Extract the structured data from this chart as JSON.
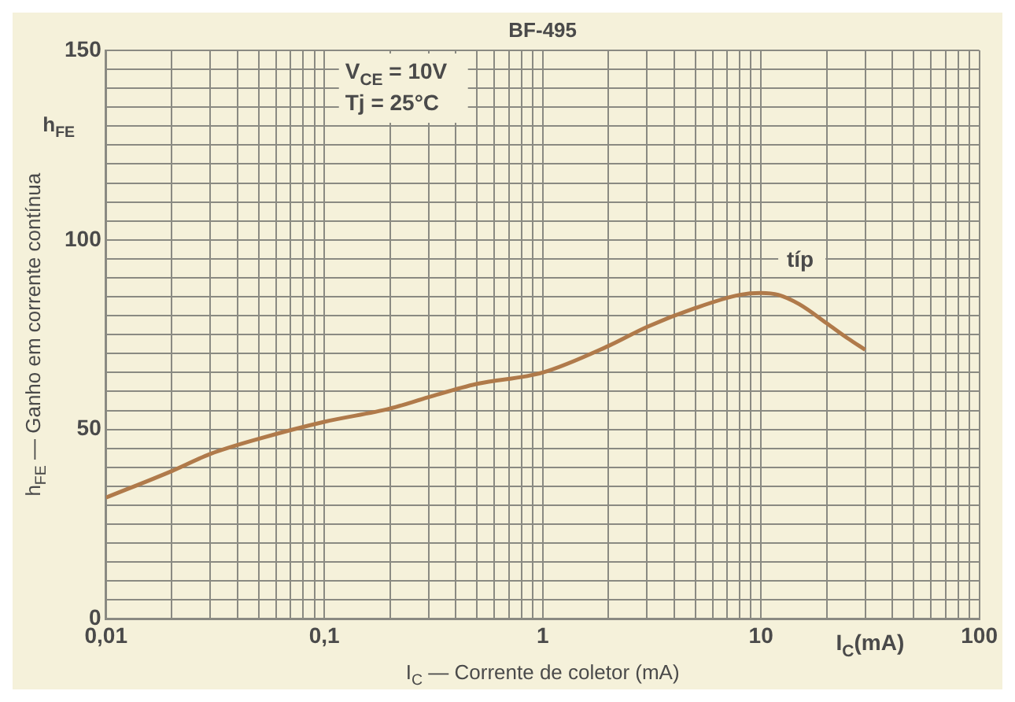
{
  "chart_data": {
    "type": "line",
    "title": "BF-495",
    "xlabel": "I$_{C}$ — Corrente de coletor (mA)",
    "ylabel": "h$_{FE}$ — Ganho em corrente contínua",
    "annotations": [
      "V$_{CE}$ = 10V",
      "Tj = 25°C",
      "h$_{FE}$",
      "I$_{C}$(mA)",
      "típ"
    ],
    "log": "x",
    "grid": true,
    "marker": "none",
    "line_style": "solid",
    "xlim": [
      0.01,
      100
    ],
    "ylim": [
      0,
      150
    ],
    "xticks": [
      {
        "value": 0.01,
        "label": "0,01"
      },
      {
        "value": 0.02,
        "label": null
      },
      {
        "value": 0.03,
        "label": null
      },
      {
        "value": 0.04,
        "label": null
      },
      {
        "value": 0.05,
        "label": null
      },
      {
        "value": 0.06,
        "label": null
      },
      {
        "value": 0.07,
        "label": null
      },
      {
        "value": 0.08,
        "label": null
      },
      {
        "value": 0.09,
        "label": null
      },
      {
        "value": 0.1,
        "label": "0,1"
      },
      {
        "value": 0.2,
        "label": null
      },
      {
        "value": 0.3,
        "label": null
      },
      {
        "value": 0.4,
        "label": null
      },
      {
        "value": 0.5,
        "label": null
      },
      {
        "value": 0.6,
        "label": null
      },
      {
        "value": 0.7,
        "label": null
      },
      {
        "value": 0.8,
        "label": null
      },
      {
        "value": 0.9,
        "label": null
      },
      1,
      {
        "value": 2,
        "label": null
      },
      {
        "value": 3,
        "label": null
      },
      {
        "value": 4,
        "label": null
      },
      {
        "value": 5,
        "label": null
      },
      {
        "value": 6,
        "label": null
      },
      {
        "value": 7,
        "label": null
      },
      {
        "value": 8,
        "label": null
      },
      {
        "value": 9,
        "label": null
      },
      10,
      {
        "value": 20,
        "label": null
      },
      {
        "value": 30,
        "label": null
      },
      {
        "value": 40,
        "label": null
      },
      {
        "value": 50,
        "label": null
      },
      {
        "value": 60,
        "label": null
      },
      {
        "value": 70,
        "label": null
      },
      {
        "value": 80,
        "label": null
      },
      {
        "value": 90,
        "label": null
      },
      100
    ],
    "yticks": [
      0,
      {
        "value": 5,
        "label": null
      },
      {
        "value": 10,
        "label": null
      },
      {
        "value": 15,
        "label": null
      },
      {
        "value": 20,
        "label": null
      },
      {
        "value": 25,
        "label": null
      },
      {
        "value": 30,
        "label": null
      },
      {
        "value": 35,
        "label": null
      },
      {
        "value": 40,
        "label": null
      },
      {
        "value": 45,
        "label": null
      },
      50,
      {
        "value": 55,
        "label": null
      },
      {
        "value": 60,
        "label": null
      },
      {
        "value": 65,
        "label": null
      },
      {
        "value": 70,
        "label": null
      },
      {
        "value": 75,
        "label": null
      },
      {
        "value": 80,
        "label": null
      },
      {
        "value": 85,
        "label": null
      },
      {
        "value": 90,
        "label": null
      },
      {
        "value": 95,
        "label": null
      },
      100,
      {
        "value": 105,
        "label": null
      },
      {
        "value": 110,
        "label": null
      },
      {
        "value": 115,
        "label": null
      },
      {
        "value": 120,
        "label": null
      },
      {
        "value": 125,
        "label": null
      },
      {
        "value": 130,
        "label": null
      },
      {
        "value": 135,
        "label": null
      },
      {
        "value": 140,
        "label": null
      },
      {
        "value": 145,
        "label": null
      },
      150
    ],
    "series": [
      {
        "color": "#b07a4a",
        "x": [
          0.01,
          0.02,
          0.03,
          0.05,
          0.1,
          0.2,
          0.3,
          0.5,
          1,
          2,
          3,
          5,
          8,
          10,
          12,
          15,
          20,
          25,
          30
        ],
        "values": [
          32,
          39,
          43.5,
          47.5,
          52,
          55.5,
          58.5,
          62,
          65,
          72,
          77,
          82,
          85.5,
          86,
          85.5,
          83,
          78,
          74,
          71
        ]
      }
    ]
  }
}
